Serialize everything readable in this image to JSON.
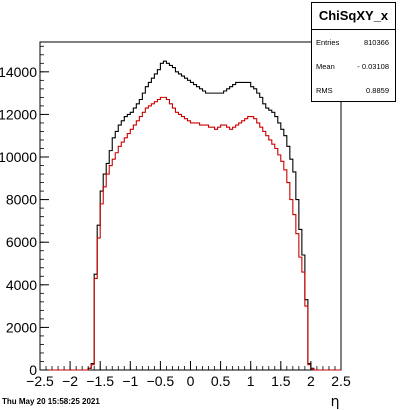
{
  "stats": {
    "title": "ChiSqXY_x",
    "rows": [
      {
        "name": "Entries",
        "value": "810366"
      },
      {
        "name": "Mean",
        "value": "- 0.03108"
      },
      {
        "name": "RMS",
        "value": "0.8859"
      }
    ]
  },
  "timestamp": "Thu May 20 15:58:25 2021",
  "chart_data": {
    "type": "line",
    "style": "step-histogram",
    "xlabel": "η",
    "ylabel": "",
    "xlim": [
      -2.5,
      2.5
    ],
    "ylim": [
      0,
      15400
    ],
    "x_ticks": [
      -2.5,
      -2,
      -1.5,
      -1,
      -0.5,
      0,
      0.5,
      1,
      1.5,
      2,
      2.5
    ],
    "x_tick_labels": [
      "−2.5",
      "−2",
      "−1.5",
      "−1",
      "−0.5",
      "0",
      "0.5",
      "1",
      "1.5",
      "2",
      "2.5"
    ],
    "y_ticks": [
      0,
      2000,
      4000,
      6000,
      8000,
      10000,
      12000,
      14000
    ],
    "y_tick_labels": [
      "0",
      "2000",
      "4000",
      "6000",
      "8000",
      "10000",
      "12000",
      "14000"
    ],
    "grid": false,
    "bins": {
      "min": -2.5,
      "width": 0.05
    },
    "series": [
      {
        "color": "#000000",
        "values": [
          0,
          0,
          0,
          0,
          0,
          0,
          0,
          0,
          0,
          0,
          0,
          0,
          0,
          0,
          0,
          0,
          80,
          300,
          4500,
          6800,
          8400,
          9200,
          9700,
          10300,
          10900,
          11200,
          11500,
          11700,
          11900,
          12000,
          12100,
          12300,
          12500,
          12700,
          13000,
          13300,
          13500,
          13700,
          13900,
          14100,
          14400,
          14500,
          14400,
          14300,
          14200,
          14000,
          13900,
          13800,
          13700,
          13600,
          13500,
          13400,
          13300,
          13200,
          13100,
          13000,
          13000,
          13000,
          13000,
          13000,
          13000,
          13100,
          13200,
          13300,
          13400,
          13500,
          13500,
          13500,
          13500,
          13500,
          13300,
          13200,
          13000,
          12800,
          12500,
          12300,
          12200,
          12100,
          11900,
          11600,
          11300,
          11000,
          10500,
          9900,
          9300,
          8000,
          6600,
          5400,
          3300,
          300,
          80,
          0,
          0,
          0,
          0,
          0,
          0,
          0,
          0,
          0
        ]
      },
      {
        "color": "#cc0000",
        "values": [
          0,
          0,
          0,
          0,
          0,
          0,
          0,
          0,
          0,
          0,
          0,
          0,
          0,
          0,
          0,
          0,
          80,
          250,
          4300,
          6200,
          7800,
          8600,
          9200,
          9600,
          9900,
          10200,
          10500,
          10700,
          10900,
          11100,
          11300,
          11500,
          11700,
          11900,
          12100,
          12300,
          12400,
          12500,
          12600,
          12700,
          12800,
          12800,
          12700,
          12500,
          12300,
          12100,
          12000,
          11900,
          11800,
          11700,
          11600,
          11600,
          11600,
          11500,
          11500,
          11500,
          11400,
          11400,
          11300,
          11400,
          11500,
          11500,
          11400,
          11300,
          11400,
          11500,
          11600,
          11700,
          11800,
          11900,
          11900,
          11800,
          11600,
          11400,
          11200,
          11000,
          10800,
          10600,
          10400,
          10100,
          9800,
          9400,
          8800,
          8000,
          7300,
          6400,
          5300,
          4600,
          3000,
          250,
          60,
          0,
          0,
          0,
          0,
          0,
          0,
          0,
          0,
          0
        ]
      }
    ]
  }
}
